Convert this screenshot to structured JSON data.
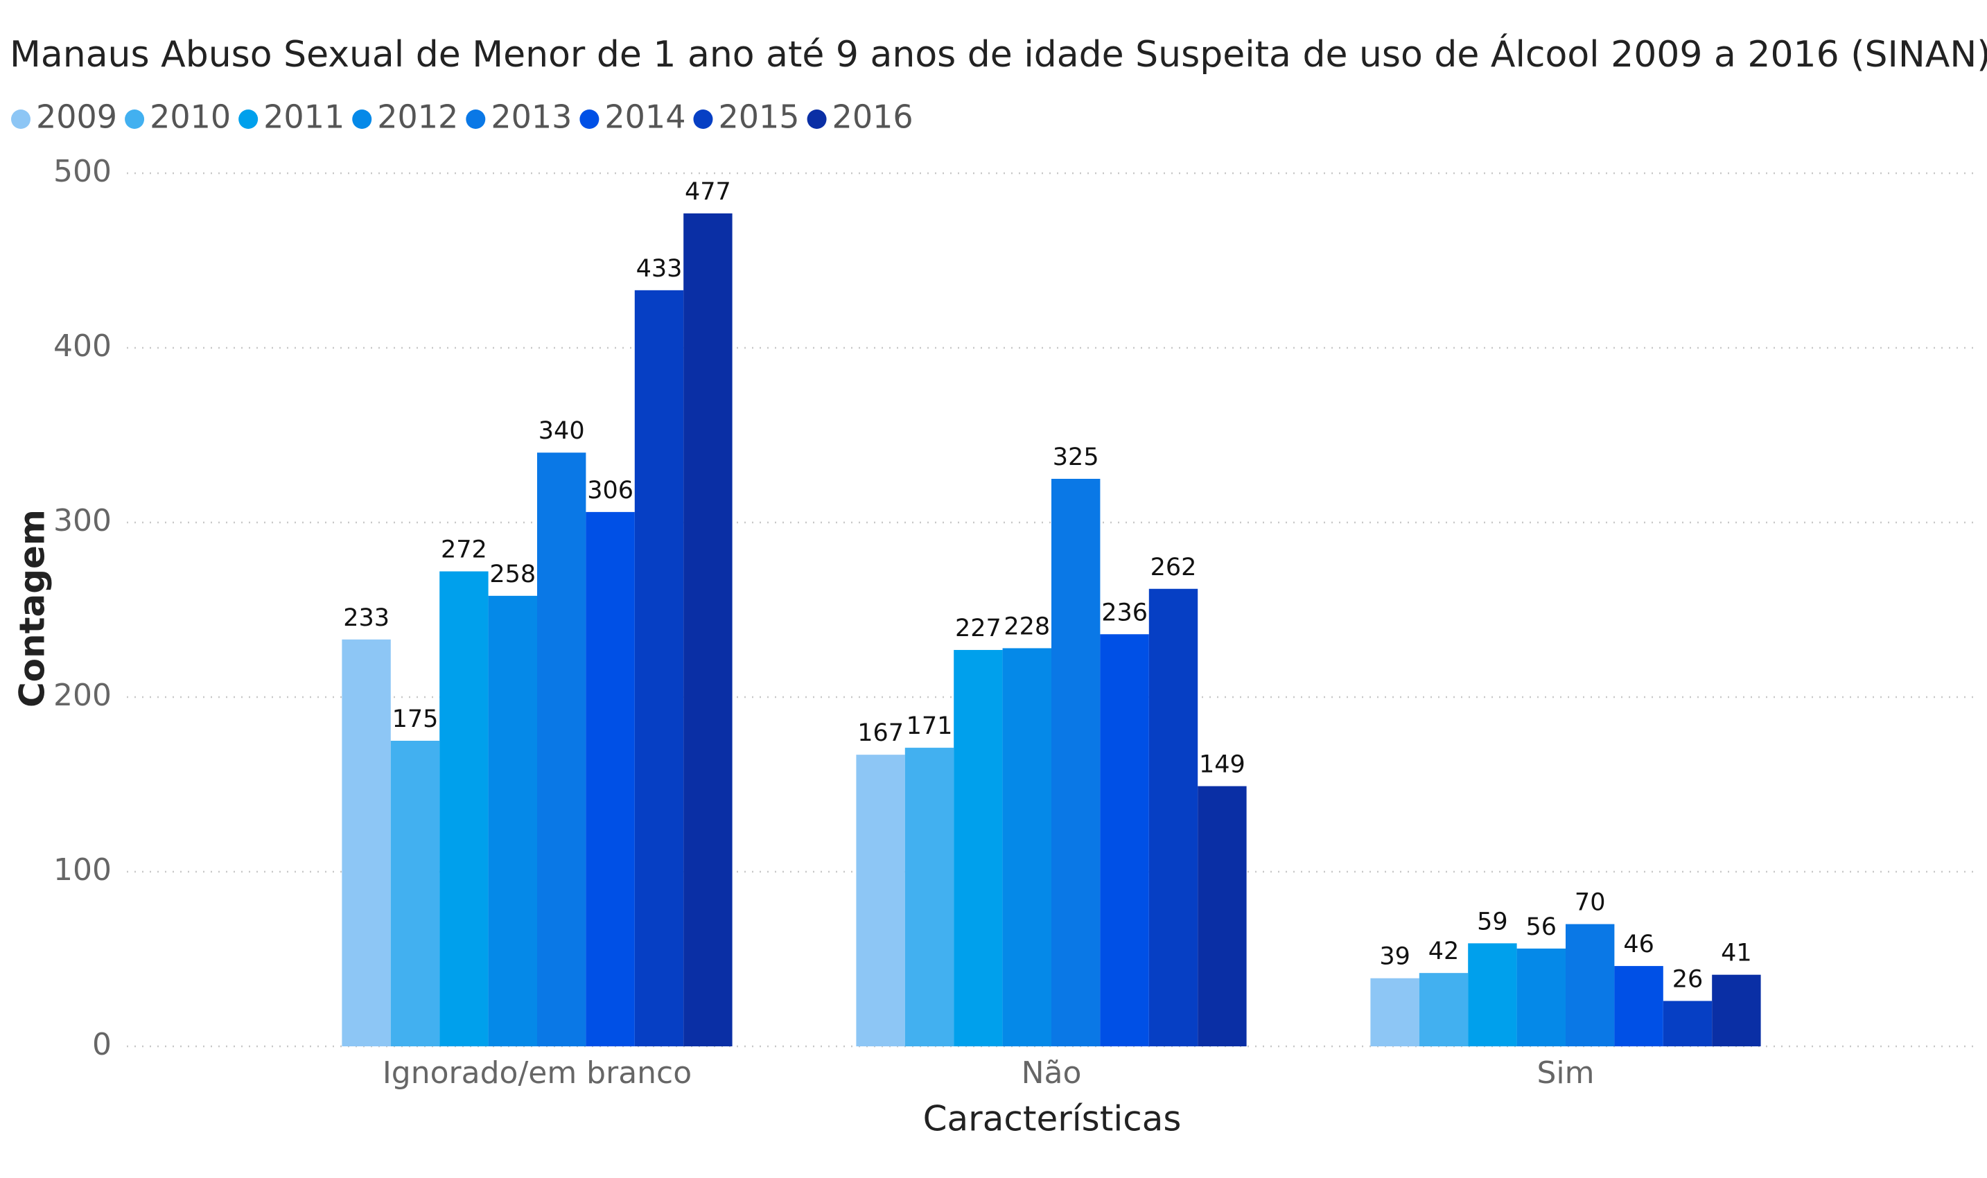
{
  "chart_data": {
    "type": "bar",
    "title": "Manaus Abuso Sexual de Menor de 1 ano até 9 anos de idade Suspeita de uso de Álcool 2009 a 2016 (SINAN)",
    "x_label": "Características",
    "y_label": "Contagem",
    "categories": [
      "Ignorado/em branco",
      "Não",
      "Sim"
    ],
    "series": [
      {
        "name": "2009",
        "color": "#8dc6f5",
        "values": [
          233,
          167,
          39
        ]
      },
      {
        "name": "2010",
        "color": "#42b0f0",
        "values": [
          175,
          171,
          42
        ]
      },
      {
        "name": "2011",
        "color": "#00a0ec",
        "values": [
          272,
          227,
          59
        ]
      },
      {
        "name": "2012",
        "color": "#0589e8",
        "values": [
          258,
          228,
          56
        ]
      },
      {
        "name": "2013",
        "color": "#0a78e6",
        "values": [
          340,
          325,
          70
        ]
      },
      {
        "name": "2014",
        "color": "#0050e6",
        "values": [
          306,
          236,
          46
        ]
      },
      {
        "name": "2015",
        "color": "#063fc4",
        "values": [
          433,
          262,
          26
        ]
      },
      {
        "name": "2016",
        "color": "#0a2fa5",
        "values": [
          477,
          149,
          41
        ]
      }
    ],
    "ylim": [
      0,
      500
    ],
    "yticks": [
      0,
      100,
      200,
      300,
      400,
      500
    ],
    "grid": true
  }
}
